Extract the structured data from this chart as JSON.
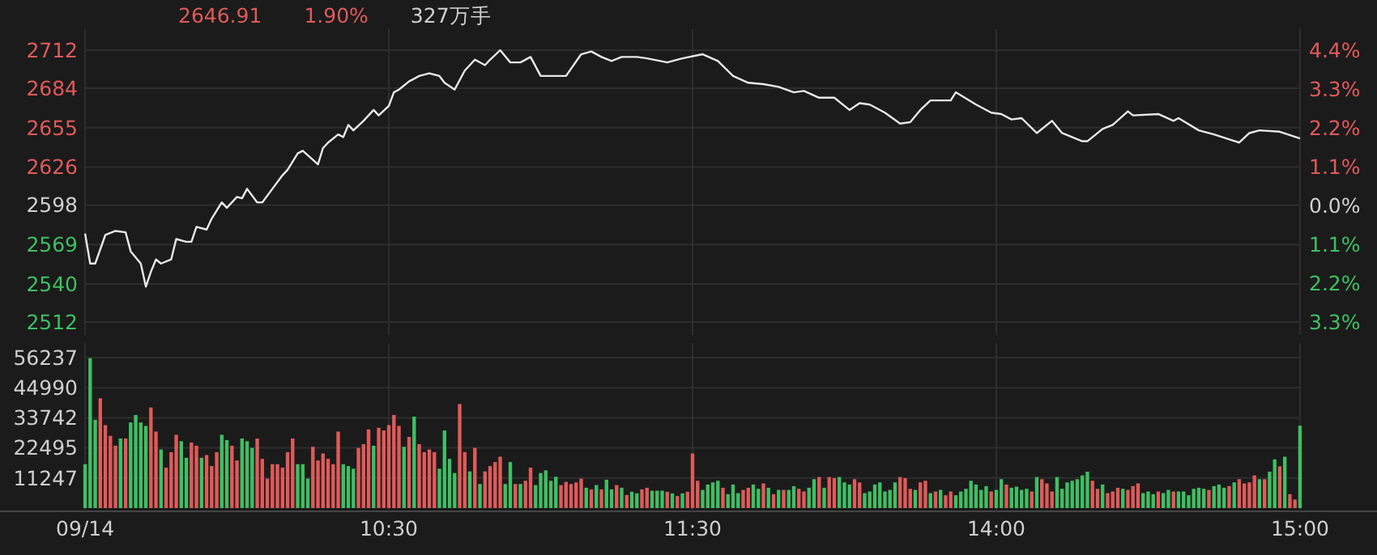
{
  "chart_data": [
    {
      "type": "line",
      "annotations": [
        "2646.91",
        "1.90%",
        "327万手"
      ],
      "categories": [
        null,
        null,
        null,
        null,
        null,
        null,
        null,
        null,
        null,
        null,
        null,
        null,
        null,
        null,
        null,
        null,
        null,
        null,
        null,
        null,
        null,
        null,
        null,
        null,
        null,
        null,
        null,
        null,
        null,
        null,
        null,
        null,
        null,
        null,
        null,
        null,
        null,
        null,
        null,
        null,
        null,
        null,
        null,
        null,
        null,
        null,
        null,
        null,
        null,
        null,
        null,
        null,
        null,
        null,
        null,
        null,
        null,
        null,
        null,
        null,
        null,
        null,
        null,
        null,
        null,
        null,
        null,
        null,
        null,
        null,
        null,
        null,
        null,
        null,
        null,
        null,
        null,
        null,
        null,
        null,
        null,
        null,
        null,
        null,
        null,
        null,
        null,
        null,
        null,
        null,
        null,
        null,
        null,
        null,
        null,
        null,
        null,
        null,
        null,
        null,
        null,
        null,
        null,
        null,
        null,
        null,
        null,
        null,
        null,
        null,
        null,
        null,
        null,
        null,
        null,
        null,
        null,
        null,
        null,
        null,
        null,
        null,
        null,
        null,
        null,
        null,
        null,
        null,
        null,
        null,
        null,
        null,
        null,
        null,
        null,
        null,
        null,
        null,
        null,
        null,
        null,
        null,
        null,
        null,
        null,
        null,
        null,
        null,
        null,
        null,
        null,
        null,
        null,
        null,
        null,
        null,
        null,
        null,
        null,
        null,
        null,
        null,
        null,
        null,
        null,
        null,
        null,
        null,
        null,
        null,
        null,
        null,
        null,
        null,
        null,
        null,
        null,
        null,
        null,
        null,
        null,
        null,
        null,
        null,
        null,
        null,
        null,
        null,
        null,
        null,
        null,
        null,
        null,
        null,
        null,
        null,
        null,
        null,
        null,
        null,
        null,
        null,
        null,
        null,
        null,
        null,
        null,
        null,
        null,
        null,
        null,
        null,
        null,
        null,
        null,
        null,
        null,
        null,
        null,
        null,
        null,
        null,
        null,
        null,
        null,
        null,
        null,
        null,
        null,
        null,
        null,
        null,
        null,
        null,
        null,
        null,
        null,
        null,
        null,
        null,
        null
      ],
      "series": [
        {
          "color": "#e8e8e8",
          "values": [
            2577,
            2555,
            2555,
            null,
            2576,
            null,
            2579,
            null,
            2578,
            2564,
            null,
            2555,
            2538,
            2549,
            2558,
            2555,
            null,
            2558,
            2573,
            null,
            2571,
            2571,
            2582,
            null,
            2580,
            2588,
            null,
            2600,
            2596,
            null,
            2604,
            2603,
            2610,
            null,
            2600,
            2600,
            null,
            2610,
            null,
            2620,
            2624,
            null,
            2636,
            2638,
            null,
            null,
            2628,
            2640,
            2644,
            null,
            2650,
            2648,
            2657,
            2653,
            null,
            2660,
            null,
            2668,
            2664,
            null,
            2671,
            2681,
            2683,
            null,
            2689,
            null,
            2693,
            null,
            2695,
            null,
            2693,
            2688,
            null,
            2683,
            null,
            2697,
            null,
            2705,
            null,
            2701,
            2705,
            null,
            2712,
            null,
            2703,
            null,
            2703,
            null,
            2707,
            null,
            2693,
            null,
            null,
            null,
            null,
            2693,
            null,
            null,
            2709,
            null,
            2711,
            null,
            2707,
            null,
            2704,
            null,
            2707,
            null,
            null,
            2707,
            null,
            2706,
            null,
            null,
            null,
            2703,
            null,
            null,
            2706,
            null,
            null,
            null,
            2709,
            null,
            null,
            2704,
            null,
            null,
            2693,
            null,
            null,
            2688,
            null,
            null,
            2687,
            null,
            null,
            2685,
            null,
            null,
            2681,
            null,
            2682,
            null,
            null,
            2677,
            null,
            null,
            2677,
            null,
            null,
            2668,
            null,
            2673,
            null,
            2672,
            null,
            null,
            2666,
            null,
            null,
            2658,
            null,
            2659,
            null,
            2668,
            null,
            2675,
            null,
            null,
            null,
            2675,
            2681,
            null,
            null,
            null,
            2672,
            null,
            null,
            2666,
            null,
            2665,
            null,
            2661,
            null,
            2662,
            null,
            null,
            2651,
            null,
            null,
            2660,
            null,
            2651,
            null,
            null,
            null,
            2645,
            2645,
            null,
            null,
            2654,
            null,
            2657,
            null,
            null,
            2667,
            2664,
            null,
            null,
            null,
            null,
            2665,
            null,
            null,
            2660,
            2662,
            null,
            null,
            null,
            2653,
            null,
            null,
            2650,
            null,
            null,
            null,
            null,
            2644,
            null,
            2651,
            null,
            2653,
            null,
            null,
            null,
            2652,
            null,
            null,
            null,
            2647
          ]
        }
      ],
      "ylim": [
        2512,
        2712
      ],
      "yticks": [
        2512,
        2540,
        2569,
        2598,
        2626,
        2655,
        2684,
        2712
      ],
      "y2lim": [
        -3.3,
        4.4
      ],
      "y2ticks": [
        {
          "value": -3.3,
          "label": "3.3%"
        },
        {
          "value": -2.2,
          "label": "2.2%"
        },
        {
          "value": -1.1,
          "label": "1.1%"
        },
        {
          "value": 0,
          "label": "0.0%"
        },
        {
          "value": 1.1,
          "label": "1.1%"
        },
        {
          "value": 2.2,
          "label": "2.2%"
        },
        {
          "value": 3.3,
          "label": "3.3%"
        },
        {
          "value": 4.4,
          "label": "4.4%"
        }
      ],
      "grid": true,
      "tick_labels": "y"
    },
    {
      "type": "bar",
      "categories": [
        "09/14",
        null,
        null,
        null,
        null,
        null,
        null,
        null,
        null,
        null,
        null,
        null,
        null,
        null,
        null,
        null,
        null,
        null,
        null,
        null,
        null,
        null,
        null,
        null,
        null,
        null,
        null,
        null,
        null,
        null,
        null,
        null,
        null,
        null,
        null,
        null,
        null,
        null,
        null,
        null,
        null,
        null,
        null,
        null,
        null,
        null,
        null,
        null,
        null,
        null,
        null,
        null,
        null,
        null,
        null,
        null,
        null,
        null,
        null,
        null,
        "10:30",
        null,
        null,
        null,
        null,
        null,
        null,
        null,
        null,
        null,
        null,
        null,
        null,
        null,
        null,
        null,
        null,
        null,
        null,
        null,
        null,
        null,
        null,
        null,
        null,
        null,
        null,
        null,
        null,
        null,
        null,
        null,
        null,
        null,
        null,
        null,
        null,
        null,
        null,
        null,
        null,
        null,
        null,
        null,
        null,
        null,
        null,
        null,
        null,
        null,
        null,
        null,
        null,
        null,
        null,
        null,
        null,
        null,
        null,
        null,
        "11:30",
        null,
        null,
        null,
        null,
        null,
        null,
        null,
        null,
        null,
        null,
        null,
        null,
        null,
        null,
        null,
        null,
        null,
        null,
        null,
        null,
        null,
        null,
        null,
        null,
        null,
        null,
        null,
        null,
        null,
        null,
        null,
        null,
        null,
        null,
        null,
        null,
        null,
        null,
        null,
        null,
        null,
        null,
        null,
        null,
        null,
        null,
        null,
        null,
        null,
        null,
        null,
        null,
        null,
        null,
        null,
        null,
        null,
        null,
        null,
        "14:00",
        null,
        null,
        null,
        null,
        null,
        null,
        null,
        null,
        null,
        null,
        null,
        null,
        null,
        null,
        null,
        null,
        null,
        null,
        null,
        null,
        null,
        null,
        null,
        null,
        null,
        null,
        null,
        null,
        null,
        null,
        null,
        null,
        null,
        null,
        null,
        null,
        null,
        null,
        null,
        null,
        null,
        null,
        null,
        null,
        null,
        null,
        null,
        null,
        null,
        null,
        null,
        null,
        null,
        null,
        null,
        null,
        null,
        null,
        null,
        "15:00"
      ],
      "values": [
        16400,
        56000,
        33000,
        41000,
        31000,
        27000,
        23300,
        26000,
        26000,
        32000,
        34800,
        32000,
        30700,
        37600,
        28600,
        21900,
        15100,
        20900,
        27400,
        25000,
        18800,
        24500,
        23300,
        18800,
        19800,
        15700,
        20900,
        27400,
        25400,
        23300,
        17800,
        26000,
        25000,
        22500,
        26000,
        18400,
        11000,
        16400,
        16400,
        15100,
        20900,
        26000,
        16400,
        16400,
        11000,
        22900,
        17800,
        20400,
        18400,
        16400,
        28600,
        16400,
        15700,
        14700,
        22500,
        23900,
        29400,
        23300,
        30000,
        29000,
        31000,
        34800,
        30700,
        22900,
        26600,
        34200,
        23900,
        20900,
        21900,
        20900,
        14700,
        29000,
        18400,
        13100,
        38900,
        20900,
        13700,
        22500,
        9000,
        13700,
        15700,
        17200,
        19200,
        9000,
        17200,
        9000,
        9000,
        10200,
        15100,
        8600,
        13100,
        14100,
        10200,
        11700,
        8600,
        9800,
        9000,
        9600,
        11000,
        7600,
        7000,
        8600,
        7000,
        10600,
        7000,
        8600,
        7600,
        4900,
        6100,
        5500,
        7000,
        7600,
        6500,
        6500,
        6500,
        6100,
        5500,
        4500,
        5500,
        6100,
        20400,
        10200,
        6800,
        8800,
        9600,
        10200,
        7600,
        5200,
        8800,
        5600,
        6800,
        7600,
        8800,
        7200,
        9200,
        7600,
        5200,
        6800,
        6800,
        6800,
        8200,
        7200,
        6200,
        7600,
        10800,
        11600,
        7600,
        11600,
        11200,
        11600,
        9600,
        8800,
        10800,
        9600,
        5600,
        6200,
        8800,
        9600,
        6200,
        6800,
        9600,
        11600,
        11200,
        7200,
        6800,
        9600,
        10200,
        5600,
        6200,
        6800,
        4800,
        6200,
        4800,
        6200,
        7200,
        10200,
        8800,
        6800,
        8200,
        6200,
        6800,
        10800,
        8800,
        7600,
        8000,
        6800,
        7200,
        6200,
        11600,
        10800,
        9200,
        6200,
        11600,
        7200,
        9600,
        10200,
        10800,
        12200,
        13600,
        10200,
        7200,
        8800,
        5600,
        6200,
        7600,
        7200,
        6800,
        8200,
        9200,
        5600,
        6200,
        5200,
        6200,
        5600,
        6800,
        6200,
        6200,
        6200,
        4800,
        7200,
        7600,
        7200,
        6800,
        8200,
        8800,
        7600,
        8200,
        9600,
        10800,
        9200,
        9600,
        12200,
        10800,
        10800,
        13600,
        18200,
        15600,
        19200,
        5200,
        3200,
        30800
      ],
      "colors": [
        "#3fbf63",
        "#3fbf63",
        "#3fbf63",
        "#e05a5a",
        "#e05a5a",
        "#e05a5a",
        "#e05a5a",
        "#3fbf63",
        "#e05a5a",
        "#3fbf63",
        "#3fbf63",
        "#3fbf63",
        "#3fbf63",
        "#e05a5a",
        "#e05a5a",
        "#3fbf63",
        "#e05a5a",
        "#e05a5a",
        "#e05a5a",
        "#3fbf63",
        "#3fbf63",
        "#e05a5a",
        "#e05a5a",
        "#3fbf63",
        "#e05a5a",
        "#e05a5a",
        "#e05a5a",
        "#3fbf63",
        "#3fbf63",
        "#e05a5a",
        "#e05a5a",
        "#3fbf63",
        "#3fbf63",
        "#3fbf63",
        "#e05a5a",
        "#e05a5a",
        "#e05a5a",
        "#e05a5a",
        "#e05a5a",
        "#e05a5a",
        "#e05a5a",
        "#e05a5a",
        "#3fbf63",
        "#3fbf63",
        "#3fbf63",
        "#e05a5a",
        "#e05a5a",
        "#e05a5a",
        "#e05a5a",
        "#e05a5a",
        "#e05a5a",
        "#3fbf63",
        "#3fbf63",
        "#3fbf63",
        "#e05a5a",
        "#e05a5a",
        "#e05a5a",
        "#3fbf63",
        "#e05a5a",
        "#e05a5a",
        "#e05a5a",
        "#e05a5a",
        "#e05a5a",
        "#3fbf63",
        "#e05a5a",
        "#3fbf63",
        "#e05a5a",
        "#e05a5a",
        "#e05a5a",
        "#e05a5a",
        "#3fbf63",
        "#3fbf63",
        "#3fbf63",
        "#3fbf63",
        "#e05a5a",
        "#e05a5a",
        "#3fbf63",
        "#e05a5a",
        "#3fbf63",
        "#e05a5a",
        "#e05a5a",
        "#e05a5a",
        "#e05a5a",
        "#3fbf63",
        "#3fbf63",
        "#e05a5a",
        "#3fbf63",
        "#e05a5a",
        "#e05a5a",
        "#3fbf63",
        "#3fbf63",
        "#3fbf63",
        "#3fbf63",
        "#3fbf63",
        "#e05a5a",
        "#e05a5a",
        "#e05a5a",
        "#e05a5a",
        "#e05a5a",
        "#3fbf63",
        "#e05a5a",
        "#3fbf63",
        "#e05a5a",
        "#3fbf63",
        "#3fbf63",
        "#e05a5a",
        "#3fbf63",
        "#e05a5a",
        "#3fbf63",
        "#3fbf63",
        "#e05a5a",
        "#e05a5a",
        "#3fbf63",
        "#3fbf63",
        "#3fbf63",
        "#e05a5a",
        "#3fbf63",
        "#e05a5a",
        "#3fbf63",
        "#e05a5a",
        "#e05a5a",
        "#e05a5a",
        "#3fbf63",
        "#3fbf63",
        "#3fbf63",
        "#3fbf63",
        "#e05a5a",
        "#3fbf63",
        "#3fbf63",
        "#3fbf63",
        "#e05a5a",
        "#e05a5a",
        "#3fbf63",
        "#3fbf63",
        "#e05a5a",
        "#3fbf63",
        "#e05a5a",
        "#3fbf63",
        "#e05a5a",
        "#3fbf63",
        "#3fbf63",
        "#e05a5a",
        "#e05a5a",
        "#3fbf63",
        "#3fbf63",
        "#e05a5a",
        "#3fbf63",
        "#e05a5a",
        "#e05a5a",
        "#3fbf63",
        "#3fbf63",
        "#3fbf63",
        "#e05a5a",
        "#e05a5a",
        "#3fbf63",
        "#3fbf63",
        "#3fbf63",
        "#3fbf63",
        "#3fbf63",
        "#3fbf63",
        "#3fbf63",
        "#e05a5a",
        "#e05a5a",
        "#e05a5a",
        "#3fbf63",
        "#e05a5a",
        "#e05a5a",
        "#3fbf63",
        "#e05a5a",
        "#3fbf63",
        "#e05a5a",
        "#e05a5a",
        "#3fbf63",
        "#3fbf63",
        "#3fbf63",
        "#3fbf63",
        "#3fbf63",
        "#3fbf63",
        "#3fbf63",
        "#e05a5a",
        "#3fbf63",
        "#3fbf63",
        "#e05a5a",
        "#3fbf63",
        "#3fbf63",
        "#3fbf63",
        "#3fbf63",
        "#e05a5a",
        "#3fbf63",
        "#e05a5a",
        "#e05a5a",
        "#e05a5a",
        "#3fbf63",
        "#3fbf63",
        "#3fbf63",
        "#3fbf63",
        "#3fbf63",
        "#3fbf63",
        "#3fbf63",
        "#e05a5a",
        "#e05a5a",
        "#3fbf63",
        "#e05a5a",
        "#e05a5a",
        "#e05a5a",
        "#3fbf63",
        "#e05a5a",
        "#e05a5a",
        "#e05a5a",
        "#3fbf63",
        "#3fbf63",
        "#3fbf63",
        "#e05a5a",
        "#3fbf63",
        "#3fbf63",
        "#e05a5a",
        "#3fbf63",
        "#3fbf63",
        "#3fbf63",
        "#3fbf63",
        "#3fbf63",
        "#3fbf63",
        "#e05a5a",
        "#3fbf63",
        "#3fbf63",
        "#3fbf63",
        "#e05a5a",
        "#3fbf63",
        "#e05a5a",
        "#e05a5a",
        "#e05a5a",
        "#e05a5a",
        "#3fbf63",
        "#e05a5a",
        "#3fbf63",
        "#3fbf63",
        "#e05a5a",
        "#3fbf63",
        "#e05a5a",
        "#e05a5a",
        "#3fbf63"
      ],
      "ylim": [
        0,
        56237
      ],
      "yticks": [
        11247,
        22495,
        33742,
        44990,
        56237
      ],
      "grid": true
    }
  ]
}
